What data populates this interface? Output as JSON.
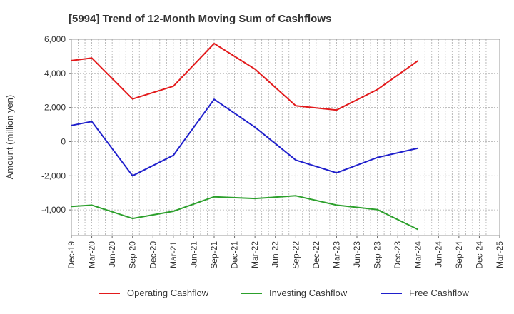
{
  "chart_data": {
    "type": "line",
    "title": "[5994]  Trend of 12-Month Moving Sum of Cashflows",
    "ylabel": "Amount (million yen)",
    "xlabel": "",
    "ylim": [
      -5500,
      6000
    ],
    "y_ticks": [
      6000,
      4000,
      2000,
      0,
      -2000,
      -4000
    ],
    "y_tick_labels": [
      "6,000",
      "4,000",
      "2,000",
      "0",
      "-2,000",
      "-4,000"
    ],
    "categories": [
      "Dec-19",
      "Mar-20",
      "Jun-20",
      "Sep-20",
      "Dec-20",
      "Mar-21",
      "Jun-21",
      "Sep-21",
      "Dec-21",
      "Mar-22",
      "Jun-22",
      "Sep-22",
      "Dec-22",
      "Mar-23",
      "Jun-23",
      "Sep-23",
      "Dec-23",
      "Mar-24",
      "Jun-24",
      "Sep-24",
      "Dec-24",
      "Mar-25"
    ],
    "grid": true,
    "legend_position": "bottom",
    "series": [
      {
        "name": "Operating Cashflow",
        "color": "#e31a1c",
        "values": [
          4750,
          4900,
          null,
          2500,
          null,
          3250,
          null,
          5750,
          null,
          4250,
          null,
          2100,
          null,
          1850,
          null,
          3050,
          null,
          4750,
          null,
          null,
          null,
          null
        ]
      },
      {
        "name": "Investing Cashflow",
        "color": "#2ca02c",
        "values": [
          -3800,
          -3720,
          null,
          -4500,
          null,
          -4080,
          null,
          -3230,
          null,
          -3330,
          null,
          -3170,
          null,
          -3720,
          null,
          -3980,
          null,
          -5150,
          null,
          null,
          null,
          null
        ]
      },
      {
        "name": "Free Cashflow",
        "color": "#1f1fcc",
        "values": [
          950,
          1180,
          null,
          -2000,
          null,
          -800,
          null,
          2480,
          null,
          850,
          null,
          -1080,
          null,
          -1830,
          null,
          -930,
          null,
          -380,
          null,
          null,
          null,
          null
        ]
      }
    ]
  }
}
